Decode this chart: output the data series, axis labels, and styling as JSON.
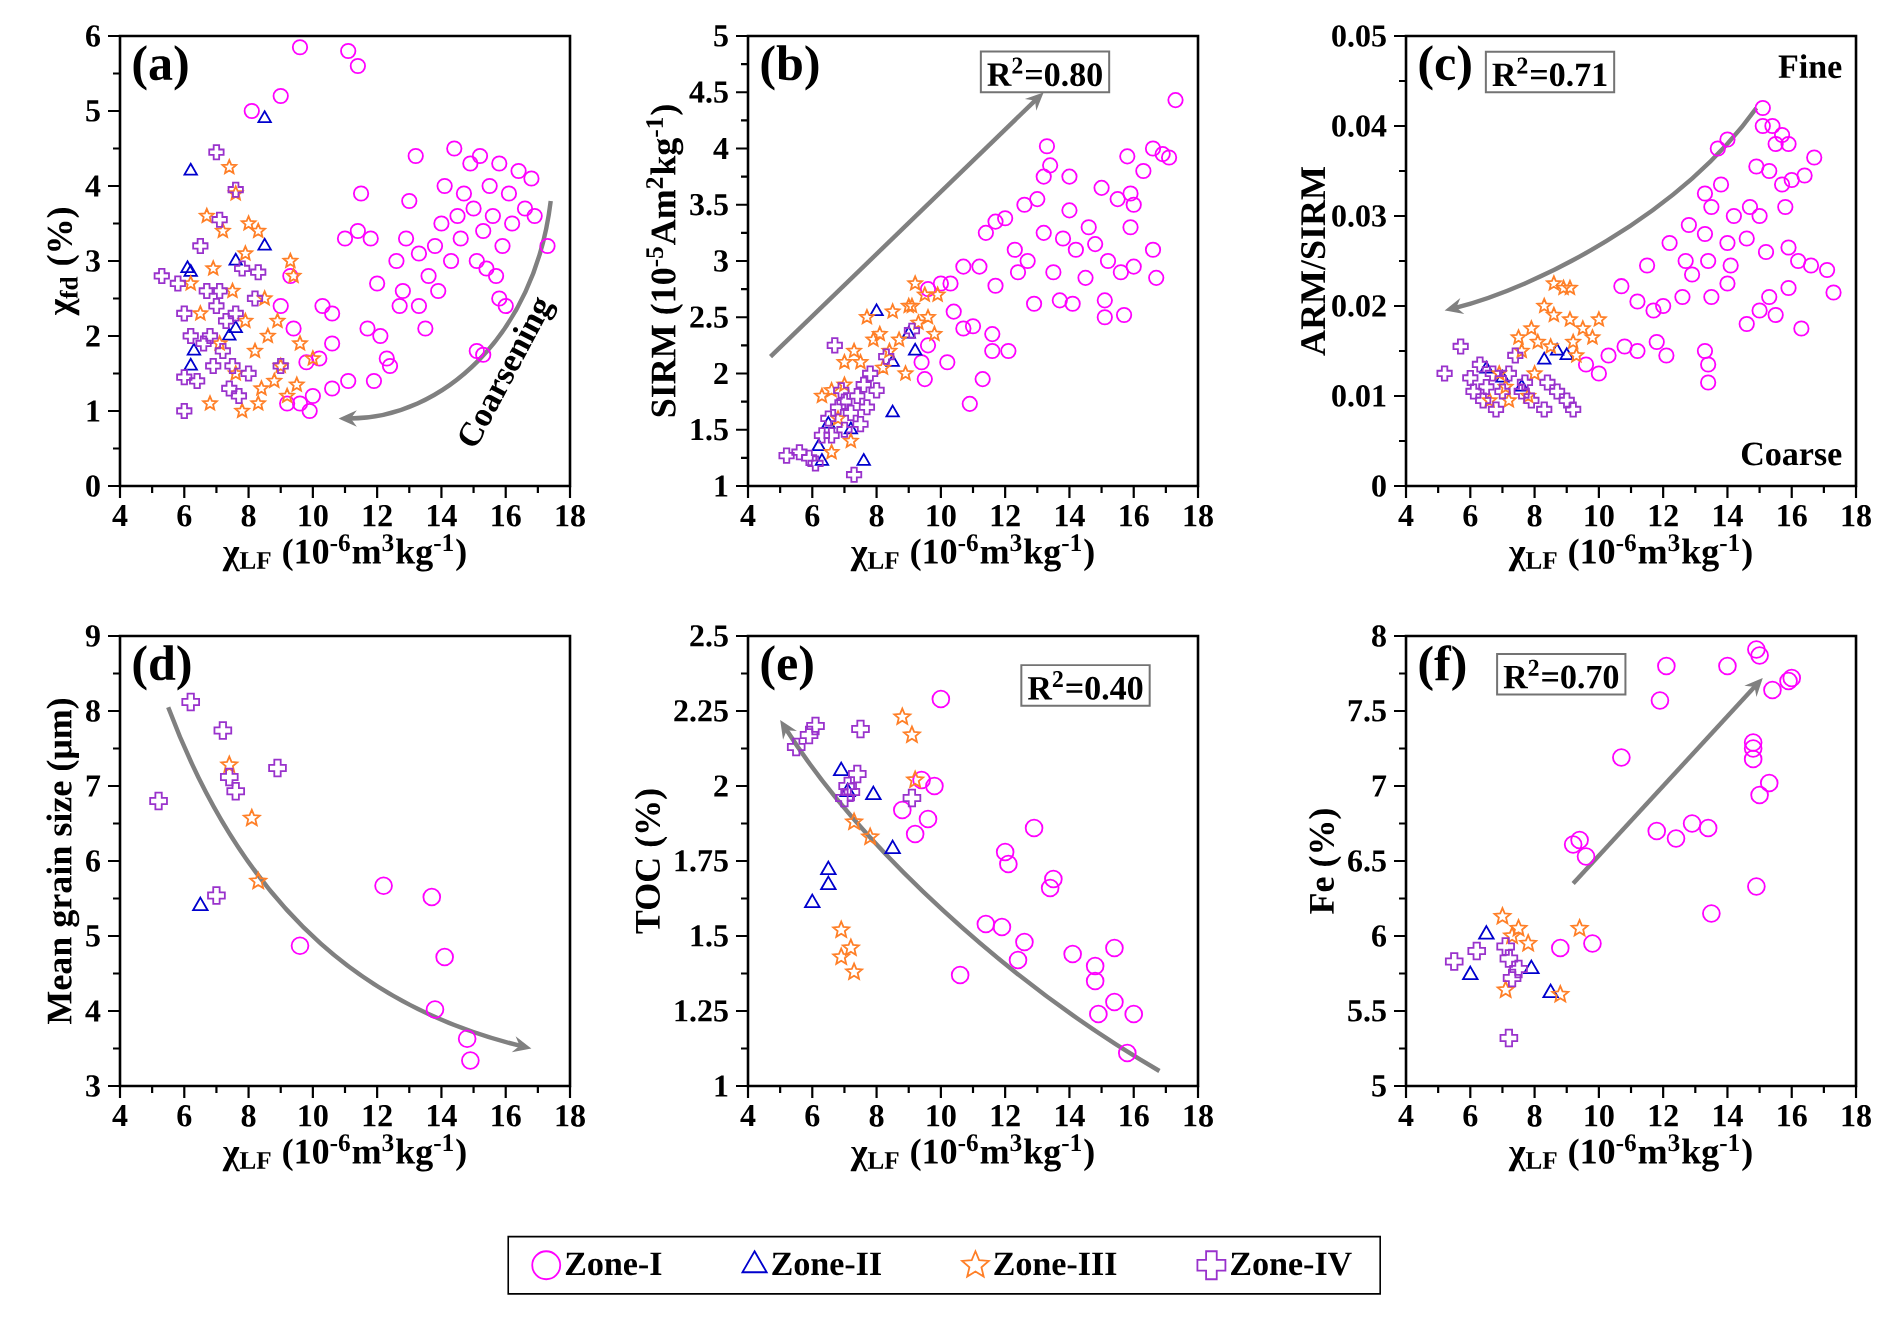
{
  "chart_data": [
    {
      "type": "scatter",
      "title": "(a)",
      "xlabel": "χ$_{LF}$ (10$^{-6}$m$^{3}$kg$^{-1}$)",
      "ylabel": "χ$_{fd}$ (%)",
      "annotations": [
        "Coarsening"
      ],
      "xlim": [
        4,
        18
      ],
      "ylim": [
        0,
        6
      ],
      "xticks": [
        4,
        6,
        8,
        10,
        12,
        14,
        16,
        18
      ],
      "yticks": [
        0,
        1,
        2,
        3,
        4,
        5,
        6
      ],
      "series": [
        {
          "color": "#ff00ff",
          "marker": "circle",
          "x": [
            9.6,
            11.1,
            11.4,
            8.1,
            9.0,
            11.5,
            9.3,
            9.0,
            9.4,
            9.6,
            9.2,
            9.9,
            10.0,
            10.6,
            11.1,
            11.9,
            10.2,
            10.6,
            10.3,
            10.6,
            9.8,
            11.0,
            11.4,
            11.8,
            12.0,
            11.7,
            12.1,
            12.3,
            12.4,
            12.7,
            12.6,
            12.9,
            13.0,
            13.2,
            13.3,
            13.5,
            13.6,
            13.8,
            13.9,
            14.0,
            14.1,
            14.3,
            14.5,
            14.4,
            14.7,
            14.9,
            15.0,
            15.1,
            15.2,
            15.3,
            15.4,
            15.5,
            15.6,
            15.7,
            15.8,
            15.9,
            16.0,
            16.1,
            16.2,
            16.4,
            16.6,
            16.8,
            16.9,
            17.3,
            15.1,
            15.3,
            15.8,
            14.6,
            13.3,
            12.8
          ],
          "values": [
            5.85,
            5.8,
            5.6,
            5.0,
            5.2,
            3.9,
            2.8,
            2.4,
            2.1,
            1.1,
            1.1,
            1.0,
            1.2,
            1.3,
            1.4,
            1.4,
            1.7,
            1.9,
            2.4,
            2.3,
            1.65,
            3.3,
            3.4,
            3.3,
            2.7,
            2.1,
            2.0,
            1.7,
            1.6,
            2.4,
            3.0,
            3.3,
            3.8,
            4.4,
            2.4,
            2.1,
            2.8,
            3.2,
            2.6,
            3.5,
            4.0,
            3.0,
            3.6,
            4.5,
            3.9,
            4.3,
            3.7,
            3.0,
            4.4,
            3.4,
            2.9,
            4.0,
            3.6,
            2.8,
            4.3,
            3.2,
            2.4,
            3.9,
            3.5,
            4.2,
            3.7,
            4.1,
            3.6,
            3.2,
            1.8,
            1.75,
            2.5,
            3.3,
            3.1,
            2.6
          ]
        },
        {
          "color": "#0000cd",
          "marker": "triangle",
          "x": [
            6.2,
            8.5,
            6.1,
            6.2,
            7.6,
            8.5,
            6.2,
            6.3,
            7.4,
            7.6
          ],
          "values": [
            4.2,
            4.9,
            2.9,
            2.85,
            3.0,
            3.2,
            1.6,
            1.8,
            2.0,
            2.1
          ]
        },
        {
          "color": "#ff7f27",
          "marker": "star",
          "x": [
            7.4,
            7.6,
            6.7,
            7.2,
            8.0,
            8.3,
            7.9,
            9.3,
            9.4,
            6.2,
            6.9,
            7.5,
            8.5,
            8.9,
            9.6,
            10.0,
            8.2,
            7.6,
            8.4,
            8.8,
            9.2,
            9.5,
            7.8,
            6.8,
            8.3,
            7.1,
            6.5,
            9.0,
            7.9,
            8.6
          ],
          "values": [
            4.25,
            3.9,
            3.6,
            3.4,
            3.5,
            3.4,
            3.1,
            3.0,
            2.8,
            2.7,
            2.9,
            2.6,
            2.5,
            2.2,
            1.9,
            1.7,
            1.8,
            1.5,
            1.3,
            1.4,
            1.2,
            1.35,
            1.0,
            1.1,
            1.1,
            1.9,
            2.3,
            1.6,
            2.2,
            2.0
          ]
        },
        {
          "color": "#9932cc",
          "marker": "cross",
          "x": [
            5.3,
            5.8,
            6.0,
            6.2,
            6.0,
            6.4,
            6.0,
            7.0,
            7.6,
            7.1,
            6.5,
            7.8,
            8.3,
            8.2,
            6.7,
            7.0,
            7.3,
            6.8,
            7.2,
            7.5,
            6.9,
            7.4,
            7.7,
            8.0,
            9.0,
            6.6,
            7.6,
            7.1
          ],
          "values": [
            2.8,
            2.7,
            2.3,
            2.0,
            1.45,
            1.4,
            1.0,
            4.45,
            3.95,
            3.55,
            3.2,
            2.9,
            2.85,
            2.5,
            2.6,
            2.4,
            2.2,
            2.0,
            1.8,
            1.6,
            1.6,
            1.3,
            1.2,
            1.5,
            1.6,
            1.9,
            2.3,
            2.6
          ]
        }
      ]
    },
    {
      "type": "scatter",
      "title": "(b)",
      "xlabel": "χ$_{LF}$ (10$^{-6}$m$^{3}$kg$^{-1}$)",
      "ylabel": "SIRM (10$^{-5}$Am$^{2}$kg$^{-1}$)",
      "annotations": [
        "R$^{2}$=0.80"
      ],
      "xlim": [
        4,
        18
      ],
      "ylim": [
        1,
        5
      ],
      "xticks": [
        4,
        6,
        8,
        10,
        12,
        14,
        16,
        18
      ],
      "yticks": [
        1,
        1.5,
        2,
        2.5,
        3,
        3.5,
        4,
        4.5,
        5
      ],
      "series": [
        {
          "color": "#ff00ff",
          "marker": "circle",
          "x": [
            17.3,
            16.6,
            16.9,
            17.1,
            13.3,
            13.4,
            13.2,
            14.0,
            15.8,
            16.3,
            15.9,
            15.5,
            16.0,
            15.0,
            14.6,
            14.0,
            12.6,
            13.0,
            12.0,
            11.7,
            11.4,
            12.3,
            12.7,
            13.2,
            13.8,
            14.2,
            14.8,
            15.2,
            15.6,
            16.0,
            16.6,
            16.7,
            15.1,
            15.1,
            15.7,
            14.1,
            13.7,
            12.9,
            13.5,
            12.4,
            11.7,
            11.2,
            10.7,
            10.3,
            10.0,
            9.6,
            10.7,
            11.0,
            11.6,
            11.6,
            12.1,
            10.4,
            9.6,
            10.2,
            9.4,
            9.5,
            11.3,
            10.9,
            14.5,
            15.9
          ],
          "values": [
            4.43,
            4.0,
            3.95,
            3.92,
            4.02,
            3.85,
            3.75,
            3.75,
            3.93,
            3.8,
            3.6,
            3.55,
            3.5,
            3.65,
            3.3,
            3.45,
            3.5,
            3.55,
            3.38,
            3.35,
            3.25,
            3.1,
            3.0,
            3.25,
            3.2,
            3.1,
            3.15,
            3.0,
            2.9,
            2.95,
            3.1,
            2.85,
            2.65,
            2.5,
            2.52,
            2.62,
            2.65,
            2.62,
            2.9,
            2.9,
            2.78,
            2.95,
            2.95,
            2.8,
            2.8,
            2.75,
            2.4,
            2.42,
            2.35,
            2.2,
            2.2,
            2.55,
            2.25,
            2.1,
            2.1,
            1.95,
            1.95,
            1.73,
            2.85,
            3.3
          ]
        },
        {
          "color": "#0000cd",
          "marker": "triangle",
          "x": [
            8.0,
            8.5,
            9.2,
            8.5,
            7.6,
            6.3,
            6.2,
            7.2,
            9.0,
            6.5
          ],
          "values": [
            2.55,
            2.1,
            2.2,
            1.65,
            1.22,
            1.22,
            1.35,
            1.5,
            2.35,
            1.55
          ]
        },
        {
          "color": "#ff7f27",
          "marker": "star",
          "x": [
            9.2,
            9.5,
            9.9,
            9.0,
            8.5,
            7.7,
            8.1,
            8.7,
            9.3,
            9.6,
            7.5,
            7.0,
            7.3,
            8.2,
            6.3,
            6.6,
            7.0,
            6.8,
            7.2,
            6.6,
            8.4,
            9.1,
            9.8,
            7.9,
            8.9
          ],
          "values": [
            2.8,
            2.7,
            2.7,
            2.6,
            2.55,
            2.5,
            2.35,
            2.3,
            2.45,
            2.5,
            2.1,
            2.1,
            2.2,
            2.05,
            1.8,
            1.85,
            1.9,
            1.6,
            1.4,
            1.3,
            2.2,
            2.6,
            2.35,
            2.3,
            2.0
          ]
        },
        {
          "color": "#9932cc",
          "marker": "cross",
          "x": [
            5.2,
            5.6,
            5.9,
            6.1,
            6.3,
            6.5,
            6.8,
            7.0,
            7.2,
            7.4,
            7.6,
            7.8,
            8.3,
            9.1,
            6.7,
            7.3,
            7.0,
            7.5,
            6.9,
            7.7,
            8.0,
            6.6
          ],
          "values": [
            1.27,
            1.3,
            1.25,
            1.2,
            1.45,
            1.6,
            1.7,
            1.75,
            1.65,
            1.8,
            1.9,
            2.0,
            2.15,
            2.38,
            2.25,
            1.1,
            1.5,
            1.55,
            1.85,
            1.7,
            1.85,
            1.45
          ]
        }
      ]
    },
    {
      "type": "scatter",
      "title": "(c)",
      "xlabel": "χ$_{LF}$ (10$^{-6}$m$^{3}$kg$^{-1}$)",
      "ylabel": "ARM/SIRM",
      "annotations": [
        "R$^{2}$=0.71",
        "Fine",
        "Coarse"
      ],
      "xlim": [
        4,
        18
      ],
      "ylim": [
        0,
        0.05
      ],
      "xticks": [
        4,
        6,
        8,
        10,
        12,
        14,
        16,
        18
      ],
      "yticks": [
        0,
        0.01,
        0.02,
        0.03,
        0.04,
        0.05
      ],
      "series": [
        {
          "color": "#ff00ff",
          "marker": "circle",
          "x": [
            15.1,
            15.1,
            15.4,
            15.7,
            15.9,
            15.5,
            16.7,
            14.0,
            13.7,
            14.9,
            15.3,
            16.0,
            16.4,
            15.7,
            13.3,
            13.8,
            13.5,
            14.2,
            14.7,
            15.0,
            15.8,
            12.8,
            13.3,
            14.0,
            14.6,
            12.2,
            12.7,
            13.4,
            14.1,
            15.2,
            15.9,
            16.2,
            16.6,
            17.1,
            17.3,
            15.3,
            15.0,
            15.5,
            15.9,
            14.6,
            14.0,
            13.5,
            12.6,
            12.0,
            11.7,
            11.2,
            10.7,
            11.5,
            11.8,
            12.1,
            11.2,
            10.8,
            10.3,
            10.0,
            9.6,
            13.3,
            13.4,
            13.4,
            16.3,
            12.9
          ],
          "values": [
            0.042,
            0.04,
            0.04,
            0.039,
            0.038,
            0.038,
            0.0365,
            0.0385,
            0.0375,
            0.0355,
            0.035,
            0.034,
            0.0345,
            0.0335,
            0.0325,
            0.0335,
            0.031,
            0.03,
            0.031,
            0.03,
            0.031,
            0.029,
            0.028,
            0.027,
            0.0275,
            0.027,
            0.025,
            0.025,
            0.0245,
            0.026,
            0.0265,
            0.025,
            0.0245,
            0.024,
            0.0215,
            0.021,
            0.0195,
            0.019,
            0.022,
            0.018,
            0.0225,
            0.021,
            0.021,
            0.02,
            0.0195,
            0.0205,
            0.0222,
            0.0245,
            0.016,
            0.0145,
            0.015,
            0.0155,
            0.0145,
            0.0125,
            0.0135,
            0.015,
            0.0135,
            0.0115,
            0.0175,
            0.0235
          ]
        },
        {
          "color": "#0000cd",
          "marker": "triangle",
          "x": [
            8.3,
            8.7,
            7.0,
            7.6,
            6.5,
            9.0
          ],
          "values": [
            0.014,
            0.015,
            0.012,
            0.011,
            0.013,
            0.0145
          ]
        },
        {
          "color": "#ff7f27",
          "marker": "star",
          "x": [
            8.6,
            8.9,
            9.1,
            8.3,
            8.6,
            9.1,
            9.5,
            10.0,
            9.8,
            7.9,
            7.5,
            7.6,
            8.1,
            8.5,
            9.2,
            7.1,
            6.6,
            7.2,
            7.8,
            6.9,
            8.0,
            9.3
          ],
          "values": [
            0.0225,
            0.022,
            0.022,
            0.02,
            0.019,
            0.0185,
            0.0175,
            0.0185,
            0.0165,
            0.0175,
            0.0165,
            0.015,
            0.016,
            0.0155,
            0.016,
            0.011,
            0.0095,
            0.0095,
            0.01,
            0.0125,
            0.0125,
            0.0145
          ]
        },
        {
          "color": "#9932cc",
          "marker": "cross",
          "x": [
            5.2,
            5.7,
            6.0,
            6.3,
            6.5,
            6.8,
            7.0,
            7.2,
            7.4,
            7.7,
            7.9,
            8.3,
            8.7,
            9.2,
            6.1,
            6.7,
            7.6,
            8.4,
            9.0,
            6.4
          ],
          "values": [
            0.0125,
            0.0155,
            0.012,
            0.0135,
            0.011,
            0.0085,
            0.0105,
            0.0125,
            0.0145,
            0.0115,
            0.0095,
            0.0085,
            0.0105,
            0.0085,
            0.0105,
            0.0125,
            0.0105,
            0.0115,
            0.0095,
            0.0095
          ]
        }
      ]
    },
    {
      "type": "scatter",
      "title": "(d)",
      "xlabel": "χ$_{LF}$ (10$^{-6}$m$^{3}$kg$^{-1}$)",
      "ylabel": "Mean grain size (μm)",
      "xlim": [
        4,
        18
      ],
      "ylim": [
        3,
        9
      ],
      "xticks": [
        4,
        6,
        8,
        10,
        12,
        14,
        16,
        18
      ],
      "yticks": [
        3,
        4,
        5,
        6,
        7,
        8,
        9
      ],
      "series": [
        {
          "color": "#ff00ff",
          "marker": "circle",
          "x": [
            12.2,
            13.7,
            14.1,
            13.8,
            14.8,
            14.9,
            9.6
          ],
          "values": [
            5.67,
            5.52,
            4.72,
            4.02,
            3.63,
            3.34,
            4.87
          ]
        },
        {
          "color": "#0000cd",
          "marker": "triangle",
          "x": [
            6.5
          ],
          "values": [
            5.4
          ]
        },
        {
          "color": "#ff7f27",
          "marker": "star",
          "x": [
            7.4,
            8.1,
            8.3
          ],
          "values": [
            7.28,
            6.57,
            5.73
          ]
        },
        {
          "color": "#9932cc",
          "marker": "cross",
          "x": [
            6.2,
            7.2,
            7.4,
            7.6,
            8.9,
            5.2,
            7.0
          ],
          "values": [
            8.12,
            7.74,
            7.12,
            6.93,
            7.24,
            6.8,
            5.54
          ]
        }
      ]
    },
    {
      "type": "scatter",
      "title": "(e)",
      "xlabel": "χ$_{LF}$ (10$^{-6}$m$^{3}$kg$^{-1}$)",
      "ylabel": "TOC (%)",
      "annotations": [
        "R$^{2}$=0.40"
      ],
      "xlim": [
        4,
        18
      ],
      "ylim": [
        1,
        2.5
      ],
      "xticks": [
        4,
        6,
        8,
        10,
        12,
        14,
        16,
        18
      ],
      "yticks": [
        1,
        1.25,
        1.5,
        1.75,
        2,
        2.25,
        2.5
      ],
      "legend": "bottom",
      "series": [
        {
          "name": "Zone-I",
          "color": "#ff00ff",
          "marker": "circle",
          "x": [
            10.0,
            9.4,
            9.8,
            8.8,
            9.6,
            9.2,
            12.9,
            12.0,
            12.1,
            13.5,
            13.4,
            11.4,
            11.9,
            12.6,
            12.4,
            10.6,
            14.1,
            14.8,
            14.8,
            15.4,
            15.4,
            14.9,
            16.0,
            15.8
          ],
          "values": [
            2.29,
            2.02,
            2.0,
            1.92,
            1.89,
            1.84,
            1.86,
            1.78,
            1.74,
            1.69,
            1.66,
            1.54,
            1.53,
            1.48,
            1.42,
            1.37,
            1.44,
            1.4,
            1.35,
            1.46,
            1.28,
            1.24,
            1.24,
            1.11
          ]
        },
        {
          "name": "Zone-II",
          "color": "#0000cd",
          "marker": "triangle",
          "x": [
            6.9,
            7.1,
            7.9,
            8.5,
            6.5,
            6.5,
            6.0
          ],
          "values": [
            2.05,
            1.98,
            1.97,
            1.79,
            1.72,
            1.67,
            1.61
          ]
        },
        {
          "name": "Zone-III",
          "color": "#ff7f27",
          "marker": "star",
          "x": [
            8.8,
            9.1,
            9.2,
            7.3,
            7.8,
            6.9,
            7.2,
            6.9,
            7.3
          ],
          "values": [
            2.23,
            2.17,
            2.02,
            1.88,
            1.83,
            1.52,
            1.46,
            1.43,
            1.38
          ]
        },
        {
          "name": "Zone-IV",
          "color": "#9932cc",
          "marker": "cross",
          "x": [
            5.5,
            5.9,
            6.1,
            7.5,
            7.1,
            7.2,
            7.0,
            9.1,
            7.4
          ],
          "values": [
            2.13,
            2.17,
            2.2,
            2.19,
            2.0,
            1.98,
            1.96,
            1.96,
            2.04
          ]
        }
      ]
    },
    {
      "type": "scatter",
      "title": "(f)",
      "xlabel": "χ$_{LF}$ (10$^{-6}$m$^{3}$kg$^{-1}$)",
      "ylabel": "Fe (%)",
      "annotations": [
        "R$^{2}$=0.70"
      ],
      "xlim": [
        4,
        18
      ],
      "ylim": [
        5,
        8
      ],
      "xticks": [
        4,
        6,
        8,
        10,
        12,
        14,
        16,
        18
      ],
      "yticks": [
        5,
        5.5,
        6,
        6.5,
        7,
        7.5,
        8
      ],
      "series": [
        {
          "color": "#ff00ff",
          "marker": "circle",
          "x": [
            14.9,
            15.0,
            12.1,
            14.0,
            15.9,
            16.0,
            15.4,
            11.9,
            10.7,
            14.8,
            14.8,
            14.8,
            15.3,
            15.0,
            11.8,
            12.4,
            12.9,
            13.4,
            9.2,
            9.4,
            9.6,
            14.9,
            13.5,
            8.8,
            9.8
          ],
          "values": [
            7.91,
            7.87,
            7.8,
            7.8,
            7.7,
            7.72,
            7.64,
            7.57,
            7.19,
            7.29,
            7.25,
            7.18,
            7.02,
            6.94,
            6.7,
            6.65,
            6.75,
            6.72,
            6.61,
            6.64,
            6.53,
            6.33,
            6.15,
            5.92,
            5.95
          ]
        },
        {
          "color": "#0000cd",
          "marker": "triangle",
          "x": [
            6.5,
            6.0,
            7.9,
            8.5
          ],
          "values": [
            6.01,
            5.74,
            5.78,
            5.62
          ]
        },
        {
          "color": "#ff7f27",
          "marker": "star",
          "x": [
            7.0,
            7.5,
            7.3,
            7.8,
            9.4,
            7.1,
            8.8
          ],
          "values": [
            6.13,
            6.05,
            6.0,
            5.95,
            6.05,
            5.64,
            5.61
          ]
        },
        {
          "color": "#9932cc",
          "marker": "cross",
          "x": [
            5.5,
            6.2,
            7.1,
            7.2,
            7.5,
            7.3,
            7.2
          ],
          "values": [
            5.83,
            5.9,
            5.93,
            5.85,
            5.78,
            5.72,
            5.32
          ]
        }
      ]
    }
  ]
}
